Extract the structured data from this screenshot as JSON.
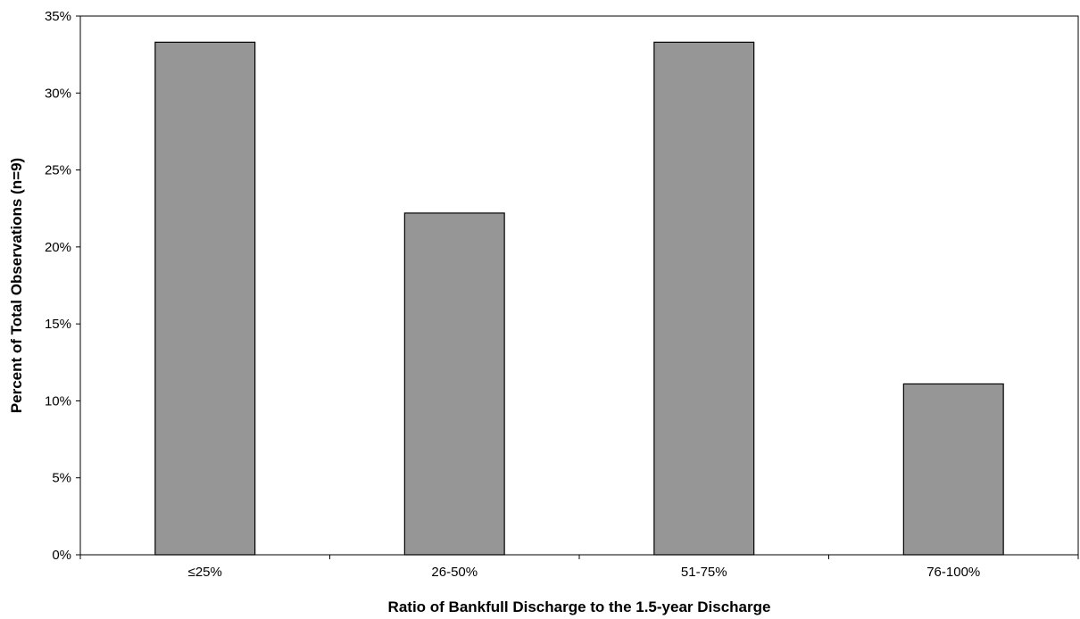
{
  "chart_data": {
    "type": "bar",
    "title": "",
    "xlabel": "Ratio of Bankfull Discharge to the 1.5-year Discharge",
    "ylabel": "Percent of Total Observations (n=9)",
    "categories": [
      "≤25%",
      "26-50%",
      "51-75%",
      "76-100%"
    ],
    "values": [
      33.3,
      22.2,
      33.3,
      11.1
    ],
    "ylim": [
      0,
      35
    ],
    "y_ticks": [
      0,
      5,
      10,
      15,
      20,
      25,
      30,
      35
    ],
    "y_tick_labels": [
      "0%",
      "5%",
      "10%",
      "15%",
      "20%",
      "25%",
      "30%",
      "35%"
    ],
    "grid": false,
    "legend": "none",
    "bar_color": "#969696",
    "bar_edge_color": "#000000"
  }
}
